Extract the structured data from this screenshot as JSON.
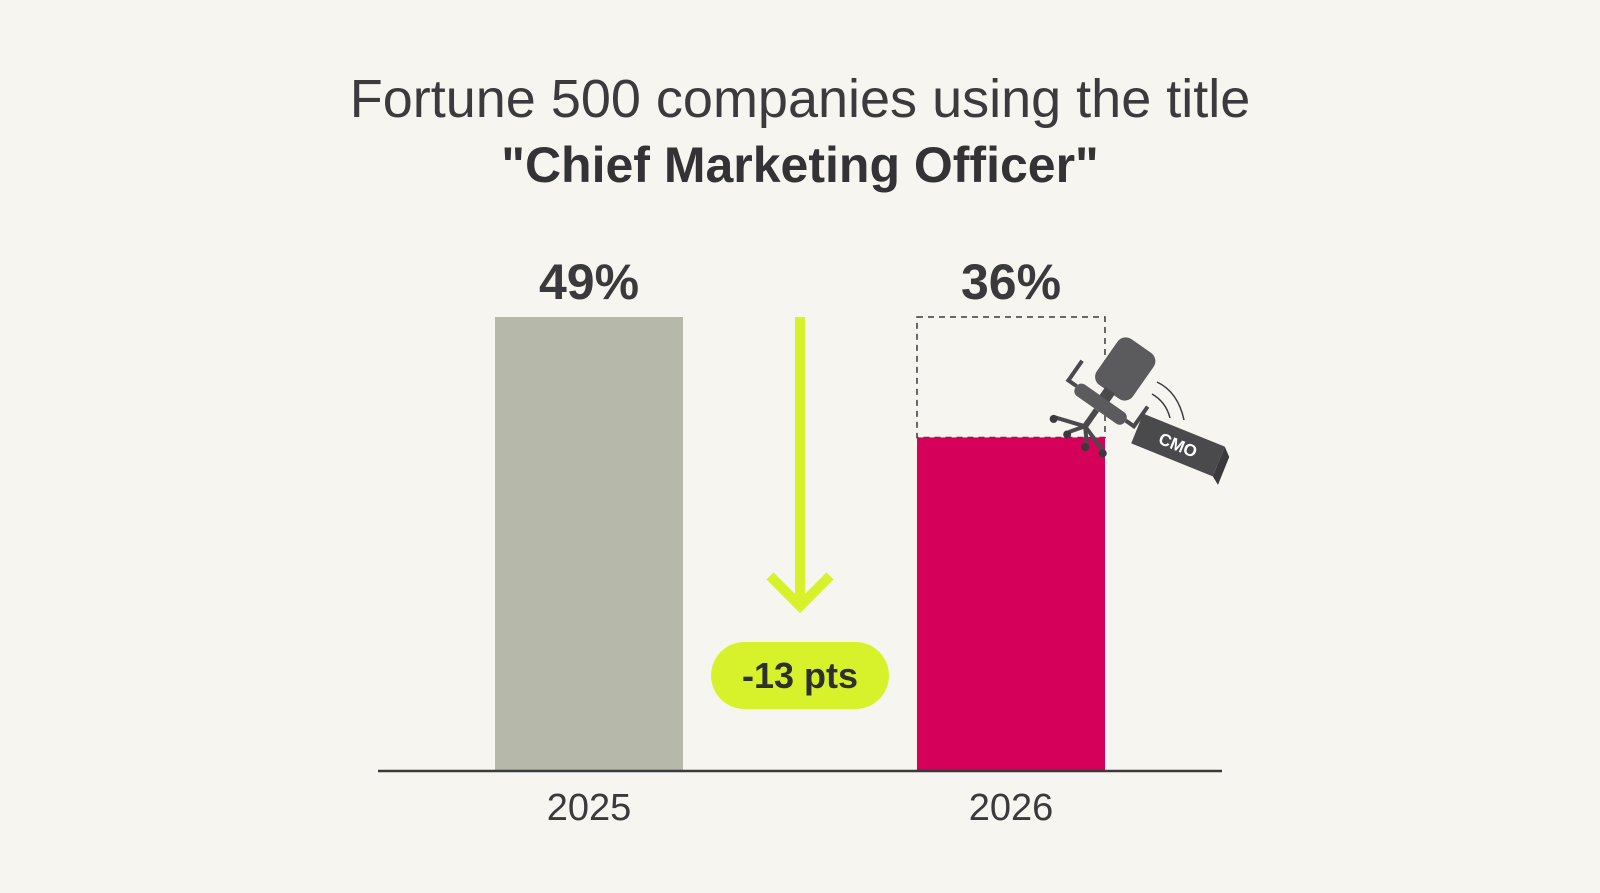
{
  "title": {
    "line1": "Fortune 500 companies using the title",
    "line2": "\"Chief Marketing Officer\""
  },
  "chart_data": {
    "type": "bar",
    "title": "Fortune 500 companies using the title \"Chief Marketing Officer\"",
    "categories": [
      "2025",
      "2026"
    ],
    "values": [
      49,
      36
    ],
    "value_labels": [
      "49%",
      "36%"
    ],
    "unit": "%",
    "xlabel": "",
    "ylabel": "",
    "ylim": [
      0,
      49
    ],
    "grid": false,
    "legend": "none",
    "annotations": {
      "delta_label": "-13 pts",
      "ghost_outline_value": 49,
      "sign_label": "CMO"
    }
  },
  "colors": {
    "background": "#f6f5f0",
    "bar_2025": "#b6b8aa",
    "bar_2026": "#d4005a",
    "accent_arrow": "#d7f22b",
    "text": "#3a3a3c",
    "axis": "#3a3a3c"
  },
  "icons": [
    "down-arrow-icon",
    "office-chair-icon",
    "cmo-nameplate-icon"
  ]
}
